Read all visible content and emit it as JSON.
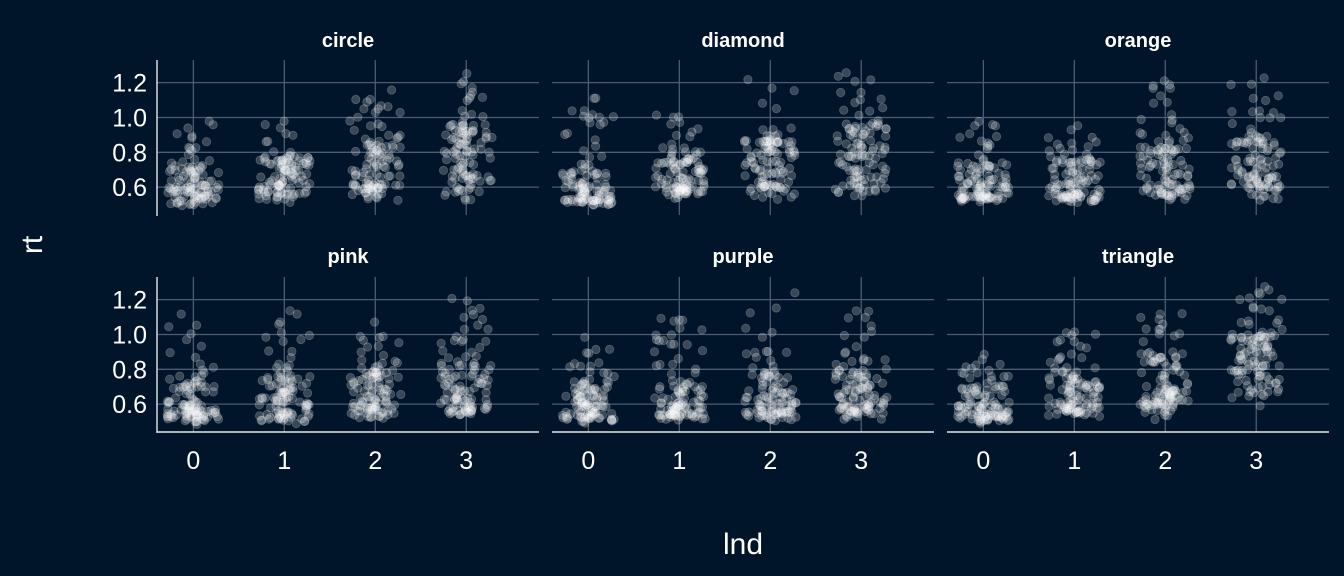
{
  "chart_data": {
    "type": "scatter",
    "xlabel": "lnd",
    "ylabel": "rt",
    "x_ticks": [
      "0",
      "1",
      "2",
      "3"
    ],
    "y_ticks": [
      "0.6",
      "0.8",
      "1.0",
      "1.2"
    ],
    "xlim": [
      -0.4,
      3.8
    ],
    "ylim": [
      0.44,
      1.33
    ],
    "grid": true,
    "jitter_width": 0.38,
    "facets": [
      {
        "title": "circle",
        "groups": [
          {
            "x": 0,
            "min": 0.48,
            "q1": 0.55,
            "med": 0.6,
            "q3": 0.7,
            "max": 0.98
          },
          {
            "x": 1,
            "min": 0.5,
            "q1": 0.58,
            "med": 0.66,
            "q3": 0.75,
            "max": 0.98
          },
          {
            "x": 2,
            "min": 0.52,
            "q1": 0.62,
            "med": 0.72,
            "q3": 0.84,
            "max": 1.2
          },
          {
            "x": 3,
            "min": 0.52,
            "q1": 0.66,
            "med": 0.8,
            "q3": 0.92,
            "max": 1.26
          }
        ]
      },
      {
        "title": "diamond",
        "groups": [
          {
            "x": 0,
            "min": 0.48,
            "q1": 0.54,
            "med": 0.6,
            "q3": 0.68,
            "max": 1.18
          },
          {
            "x": 1,
            "min": 0.52,
            "q1": 0.58,
            "med": 0.64,
            "q3": 0.74,
            "max": 1.02
          },
          {
            "x": 2,
            "min": 0.5,
            "q1": 0.62,
            "med": 0.74,
            "q3": 0.86,
            "max": 1.22
          },
          {
            "x": 3,
            "min": 0.52,
            "q1": 0.66,
            "med": 0.8,
            "q3": 0.94,
            "max": 1.26
          }
        ]
      },
      {
        "title": "orange",
        "groups": [
          {
            "x": 0,
            "min": 0.5,
            "q1": 0.55,
            "med": 0.62,
            "q3": 0.72,
            "max": 0.98
          },
          {
            "x": 1,
            "min": 0.5,
            "q1": 0.56,
            "med": 0.64,
            "q3": 0.74,
            "max": 0.98
          },
          {
            "x": 2,
            "min": 0.5,
            "q1": 0.6,
            "med": 0.72,
            "q3": 0.82,
            "max": 1.22
          },
          {
            "x": 3,
            "min": 0.48,
            "q1": 0.62,
            "med": 0.74,
            "q3": 0.86,
            "max": 1.28
          }
        ]
      },
      {
        "title": "pink",
        "groups": [
          {
            "x": 0,
            "min": 0.48,
            "q1": 0.54,
            "med": 0.6,
            "q3": 0.7,
            "max": 1.18
          },
          {
            "x": 1,
            "min": 0.48,
            "q1": 0.56,
            "med": 0.64,
            "q3": 0.74,
            "max": 1.14
          },
          {
            "x": 2,
            "min": 0.5,
            "q1": 0.58,
            "med": 0.68,
            "q3": 0.78,
            "max": 1.2
          },
          {
            "x": 3,
            "min": 0.5,
            "q1": 0.6,
            "med": 0.7,
            "q3": 0.82,
            "max": 1.22
          }
        ]
      },
      {
        "title": "purple",
        "groups": [
          {
            "x": 0,
            "min": 0.48,
            "q1": 0.54,
            "med": 0.6,
            "q3": 0.68,
            "max": 1.02
          },
          {
            "x": 1,
            "min": 0.5,
            "q1": 0.55,
            "med": 0.62,
            "q3": 0.7,
            "max": 1.12
          },
          {
            "x": 2,
            "min": 0.5,
            "q1": 0.56,
            "med": 0.64,
            "q3": 0.76,
            "max": 1.26
          },
          {
            "x": 3,
            "min": 0.5,
            "q1": 0.58,
            "med": 0.66,
            "q3": 0.78,
            "max": 1.14
          }
        ]
      },
      {
        "title": "triangle",
        "groups": [
          {
            "x": 0,
            "min": 0.48,
            "q1": 0.54,
            "med": 0.6,
            "q3": 0.7,
            "max": 0.9
          },
          {
            "x": 1,
            "min": 0.52,
            "q1": 0.58,
            "med": 0.66,
            "q3": 0.74,
            "max": 1.12
          },
          {
            "x": 2,
            "min": 0.5,
            "q1": 0.62,
            "med": 0.72,
            "q3": 0.84,
            "max": 1.22
          },
          {
            "x": 3,
            "min": 0.56,
            "q1": 0.74,
            "med": 0.86,
            "q3": 0.98,
            "max": 1.28
          }
        ]
      }
    ],
    "colors": {
      "background": "#001529",
      "grid": "#4a5d73",
      "axis": "#e6e6e6",
      "text": "#ffffff",
      "point": "rgba(255,255,255,0.22)"
    }
  }
}
